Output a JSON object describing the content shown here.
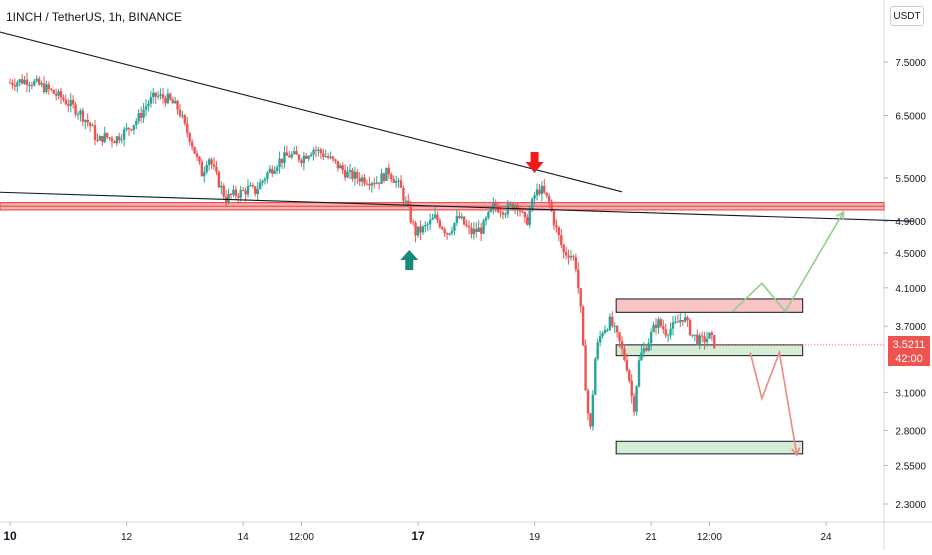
{
  "title": "1INCH / TetherUS, 1h, BINANCE",
  "currency": "USDT",
  "price_badge": {
    "price": "3.5211",
    "countdown": "42:00"
  },
  "colors": {
    "up": "#26a69a",
    "down": "#ef5350",
    "zone_red": "#ef5350",
    "zone_pink": "#f8c4c4",
    "zone_green": "#d6ecd4",
    "arrow_up": "#138a7a",
    "arrow_down": "#f31919",
    "proj_green": "#8fd08a",
    "proj_red": "#ec8a80"
  },
  "icons": {
    "up_arrow": "teal-up-arrow-icon",
    "down_arrow": "red-down-arrow-icon"
  },
  "chart_data": {
    "type": "candlestick",
    "y_scale": "log",
    "y_ticks": [
      "7.5000",
      "6.5000",
      "5.5000",
      "4.9000",
      "4.5000",
      "4.1000",
      "3.7000",
      "3.1000",
      "2.8000",
      "2.5500",
      "2.3000"
    ],
    "x_ticks": [
      "10",
      "12",
      "14",
      "12:00",
      "17",
      "19",
      "21",
      "12:00",
      "24"
    ],
    "x_ticks_bold": [
      "10",
      "17"
    ],
    "price_path_close": [
      [
        10.0,
        7.1
      ],
      [
        10.3,
        7.15
      ],
      [
        10.6,
        7.0
      ],
      [
        10.9,
        6.8
      ],
      [
        11.2,
        6.55
      ],
      [
        11.4,
        6.3
      ],
      [
        11.5,
        6.05
      ],
      [
        11.6,
        6.15
      ],
      [
        11.8,
        6.1
      ],
      [
        12.0,
        6.25
      ],
      [
        12.2,
        6.45
      ],
      [
        12.35,
        6.7
      ],
      [
        12.5,
        6.85
      ],
      [
        12.7,
        6.8
      ],
      [
        12.9,
        6.6
      ],
      [
        13.0,
        6.3
      ],
      [
        13.1,
        6.1
      ],
      [
        13.2,
        5.8
      ],
      [
        13.3,
        5.55
      ],
      [
        13.4,
        5.85
      ],
      [
        13.5,
        5.6
      ],
      [
        13.6,
        5.4
      ],
      [
        13.7,
        5.2
      ],
      [
        13.8,
        5.25
      ],
      [
        14.0,
        5.3
      ],
      [
        14.1,
        5.35
      ],
      [
        14.2,
        5.3
      ],
      [
        14.4,
        5.55
      ],
      [
        14.6,
        5.75
      ],
      [
        14.8,
        5.85
      ],
      [
        15.0,
        5.8
      ],
      [
        15.2,
        5.95
      ],
      [
        15.4,
        5.85
      ],
      [
        15.6,
        5.7
      ],
      [
        15.8,
        5.55
      ],
      [
        16.0,
        5.5
      ],
      [
        16.3,
        5.45
      ],
      [
        16.5,
        5.6
      ],
      [
        16.7,
        5.35
      ],
      [
        16.85,
        5.0
      ],
      [
        16.95,
        4.75
      ],
      [
        17.1,
        4.8
      ],
      [
        17.3,
        4.95
      ],
      [
        17.5,
        4.75
      ],
      [
        17.7,
        4.95
      ],
      [
        17.9,
        4.75
      ],
      [
        18.1,
        4.8
      ],
      [
        18.3,
        5.1
      ],
      [
        18.5,
        5.05
      ],
      [
        18.7,
        5.15
      ],
      [
        18.85,
        4.85
      ],
      [
        19.0,
        5.25
      ],
      [
        19.1,
        5.35
      ],
      [
        19.25,
        5.15
      ],
      [
        19.35,
        4.85
      ],
      [
        19.5,
        4.5
      ],
      [
        19.6,
        4.5
      ],
      [
        19.7,
        4.4
      ],
      [
        19.8,
        3.8
      ],
      [
        19.85,
        3.3
      ],
      [
        19.95,
        2.75
      ],
      [
        20.05,
        3.45
      ],
      [
        20.15,
        3.65
      ],
      [
        20.3,
        3.75
      ],
      [
        20.45,
        3.55
      ],
      [
        20.6,
        3.3
      ],
      [
        20.7,
        2.95
      ],
      [
        20.8,
        3.4
      ],
      [
        20.95,
        3.55
      ],
      [
        21.1,
        3.75
      ],
      [
        21.25,
        3.65
      ],
      [
        21.4,
        3.7
      ],
      [
        21.55,
        3.8
      ],
      [
        21.7,
        3.62
      ],
      [
        21.85,
        3.55
      ],
      [
        22.0,
        3.6
      ],
      [
        22.1,
        3.52
      ]
    ],
    "resistance_zone": [
      5.05,
      5.15
    ],
    "upper_trendline": [
      [
        9.6,
        8.2
      ],
      [
        20.5,
        5.3
      ]
    ],
    "lower_trendline": [
      [
        9.6,
        5.3
      ],
      [
        25.5,
        4.9
      ]
    ],
    "boxes": [
      {
        "name": "upper-resistance-box",
        "x": [
          20.4,
          23.6
        ],
        "y": [
          3.84,
          3.98
        ],
        "fill": "#f8c4c4"
      },
      {
        "name": "support-box",
        "x": [
          20.4,
          23.6
        ],
        "y": [
          3.42,
          3.52
        ],
        "fill": "#d6ecd4"
      },
      {
        "name": "target-box",
        "x": [
          20.4,
          23.6
        ],
        "y": [
          2.63,
          2.72
        ],
        "fill": "#d6ecd4"
      }
    ],
    "projection_up": [
      [
        22.4,
        3.85
      ],
      [
        22.9,
        4.15
      ],
      [
        23.3,
        3.85
      ],
      [
        24.3,
        5.02
      ]
    ],
    "projection_down": [
      [
        22.7,
        3.45
      ],
      [
        22.9,
        3.05
      ],
      [
        23.2,
        3.45
      ],
      [
        23.5,
        2.62
      ]
    ]
  }
}
